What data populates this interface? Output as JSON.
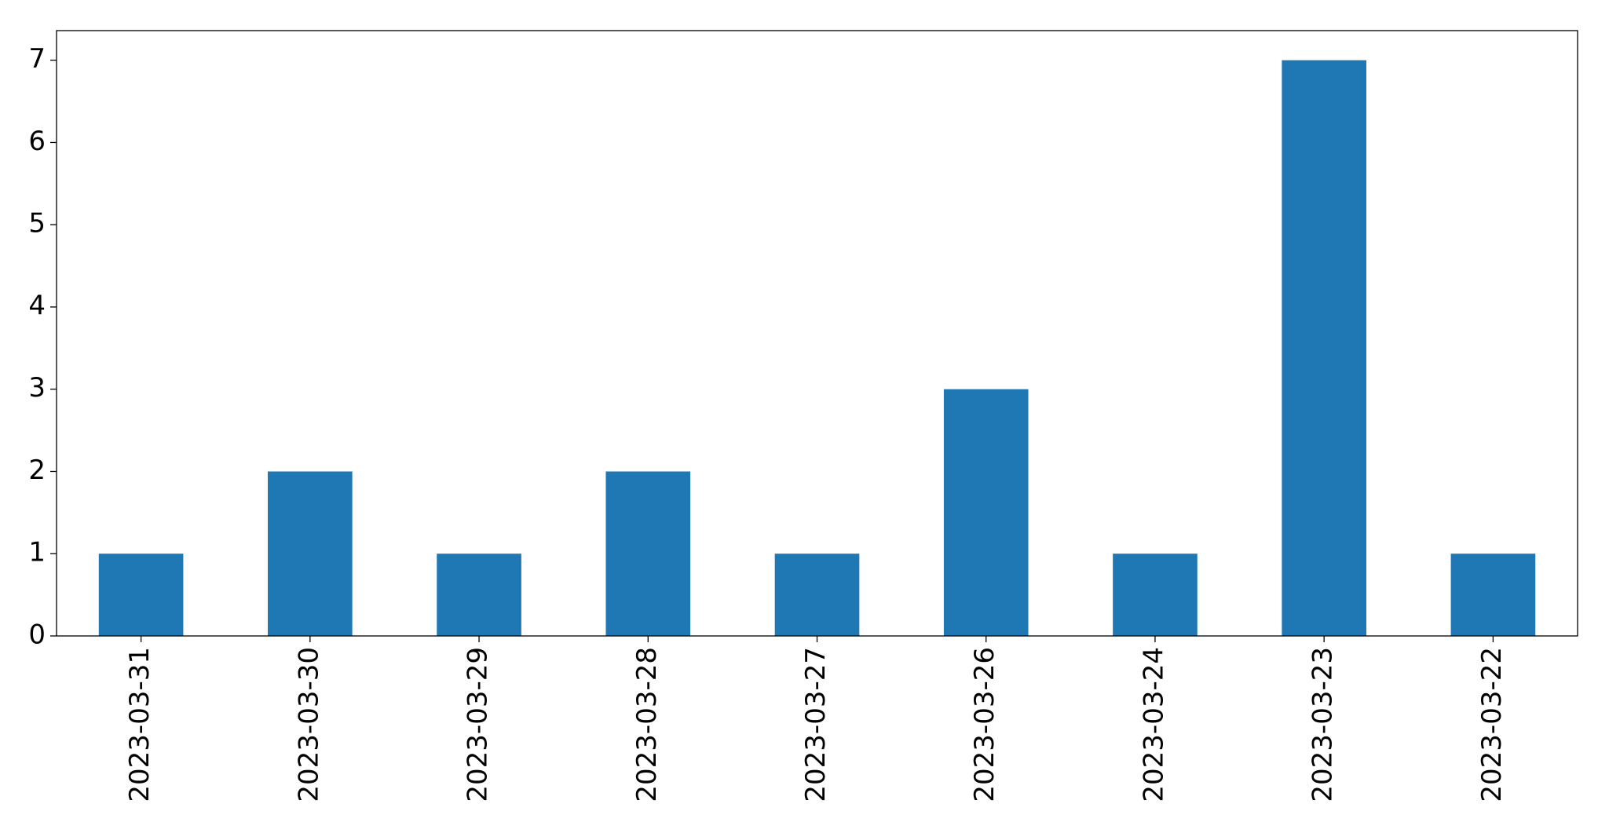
{
  "chart_data": {
    "type": "bar",
    "categories": [
      "2023-03-31",
      "2023-03-30",
      "2023-03-29",
      "2023-03-28",
      "2023-03-27",
      "2023-03-26",
      "2023-03-24",
      "2023-03-23",
      "2023-03-22"
    ],
    "values": [
      1,
      2,
      1,
      2,
      1,
      3,
      1,
      7,
      1
    ],
    "color": "#1f77b4",
    "ylim": [
      0,
      7.36
    ],
    "yticks": [
      0,
      1,
      2,
      3,
      4,
      5,
      6,
      7
    ],
    "grid": false
  }
}
